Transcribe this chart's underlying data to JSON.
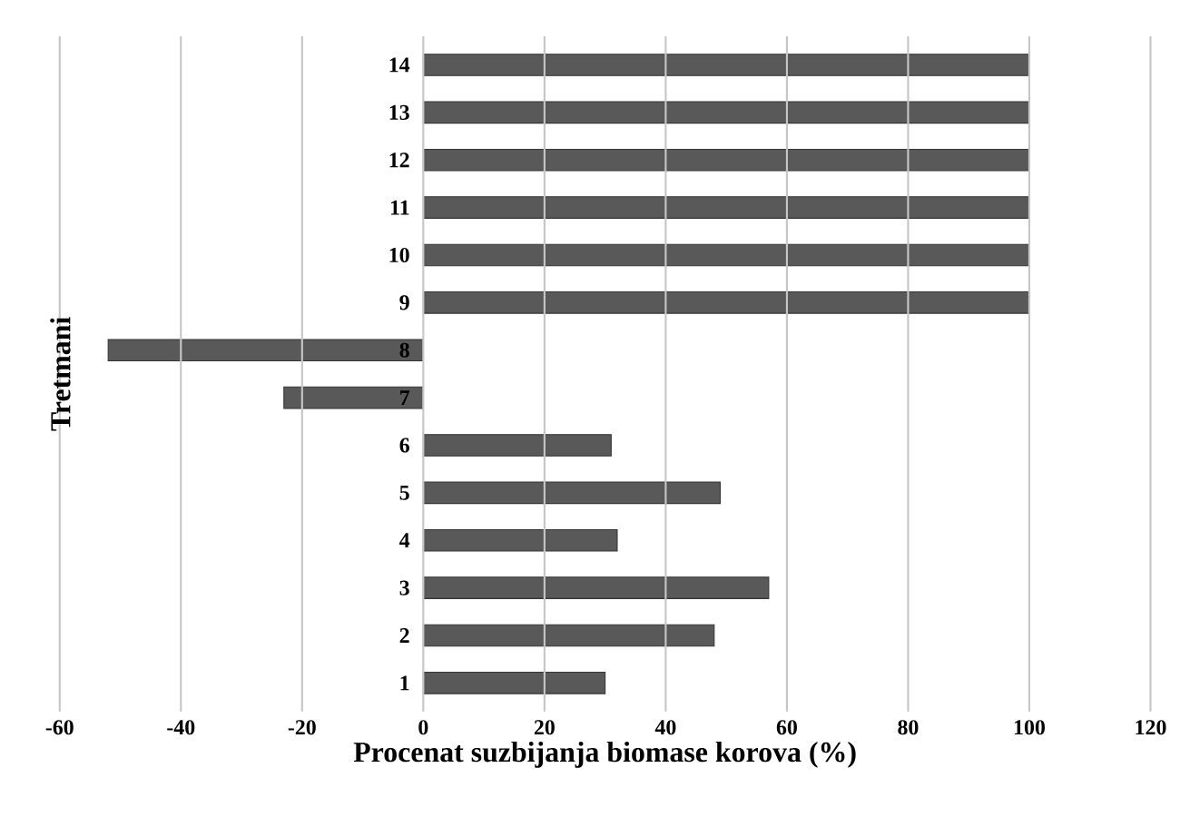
{
  "chart_data": {
    "type": "bar",
    "orientation": "horizontal",
    "xlabel": "Procenat suzbijanja biomase korova (%)",
    "ylabel": "Tretmani",
    "categories": [
      "14",
      "13",
      "12",
      "11",
      "10",
      "9",
      "8",
      "7",
      "6",
      "5",
      "4",
      "3",
      "2",
      "1"
    ],
    "values": [
      100,
      100,
      100,
      100,
      100,
      100,
      -52,
      -23,
      31,
      49,
      32,
      57,
      48,
      30
    ],
    "color": "#595959",
    "xlim": [
      -60,
      120
    ],
    "xticks": [
      -60,
      -40,
      -20,
      0,
      20,
      40,
      60,
      80,
      100,
      120
    ],
    "grid": "x"
  }
}
